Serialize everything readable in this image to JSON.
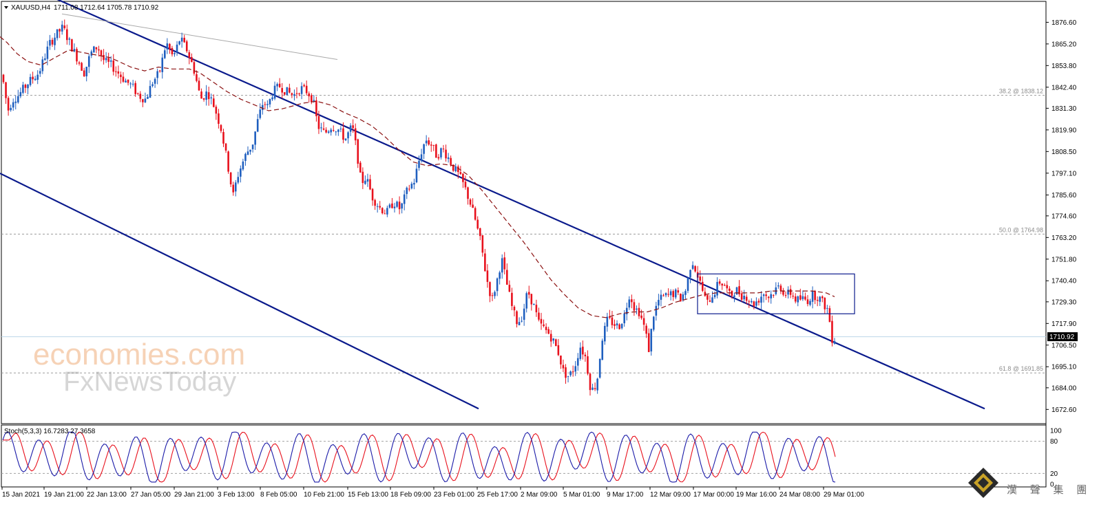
{
  "header": {
    "symbol": "XAUUSD,H4",
    "ohlc": "1711.08 1712.64 1705.78 1710.92"
  },
  "stoch": {
    "label": "Stoch(5,3,3) 16.7283 27.3658",
    "ticks": [
      "100",
      "80",
      "20",
      "0"
    ]
  },
  "price_axis": {
    "ticks": [
      "1876.60",
      "1865.20",
      "1853.80",
      "1842.40",
      "1831.30",
      "1819.90",
      "1808.50",
      "1797.10",
      "1785.60",
      "1774.60",
      "1763.20",
      "1751.80",
      "1740.40",
      "1729.30",
      "1717.90",
      "1706.50",
      "1695.10",
      "1684.00",
      "1672.60"
    ],
    "current": "1710.92"
  },
  "fib_levels": [
    {
      "label": "38.2 @ 1838.12",
      "price": 1838.12
    },
    {
      "label": "50.0 @ 1764.98",
      "price": 1764.98
    },
    {
      "label": "61.8 @ 1691.85",
      "price": 1691.85
    }
  ],
  "time_axis": {
    "labels": [
      "15 Jan 2021",
      "19 Jan 21:00",
      "22 Jan 13:00",
      "27 Jan 05:00",
      "29 Jan 21:00",
      "3 Feb 13:00",
      "8 Feb 05:00",
      "10 Feb 21:00",
      "15 Feb 13:00",
      "18 Feb 09:00",
      "23 Feb 01:00",
      "25 Feb 17:00",
      "2 Mar 09:00",
      "5 Mar 01:00",
      "9 Mar 17:00",
      "12 Mar 09:00",
      "17 Mar 00:00",
      "19 Mar 16:00",
      "24 Mar 08:00",
      "29 Mar 01:00"
    ]
  },
  "watermark": {
    "line1": "economies.com",
    "line2": "FxNewsToday"
  },
  "logo": {
    "text": "漢 聲 集 團"
  },
  "colors": {
    "bull": "#1f5fbf",
    "bear": "#e8101c",
    "trendline": "#0a1a8c",
    "ma": "#8b1010",
    "stoch_main": "#1a1aa8",
    "stoch_signal": "#e8101c"
  },
  "chart_data": {
    "type": "candlestick",
    "title": "XAUUSD,H4",
    "ylim": [
      1668,
      1884
    ],
    "moving_average": {
      "x": [
        0,
        10,
        25,
        40,
        60,
        80,
        100,
        130,
        160,
        190,
        210,
        230,
        250,
        275,
        290,
        310,
        330,
        350,
        370,
        390,
        410,
        420,
        440,
        460,
        480,
        500,
        520,
        540,
        560,
        580,
        600,
        620,
        640,
        660,
        680,
        700,
        720,
        740,
        760,
        780,
        800,
        820,
        840,
        860,
        880,
        900,
        920,
        940,
        960,
        980,
        1000,
        1020,
        1040,
        1060,
        1080,
        1100,
        1120,
        1140,
        1160,
        1180,
        1200,
        1212
      ],
      "y": [
        1869,
        1866,
        1860,
        1856,
        1854,
        1858,
        1862,
        1860,
        1858,
        1853,
        1851,
        1853,
        1852,
        1852,
        1850,
        1845,
        1840,
        1836,
        1833,
        1830,
        1831,
        1832,
        1834,
        1835,
        1833,
        1829,
        1826,
        1822,
        1816,
        1809,
        1803,
        1801,
        1802,
        1801,
        1796,
        1788,
        1779,
        1770,
        1761,
        1751,
        1741,
        1733,
        1726,
        1722,
        1721,
        1723,
        1724,
        1724,
        1726,
        1729,
        1731,
        1733,
        1734,
        1734,
        1734,
        1734,
        1735,
        1735,
        1735,
        1735,
        1734,
        1732
      ]
    },
    "price_path": {
      "x": [
        0,
        8,
        15,
        22,
        30,
        45,
        60,
        75,
        85,
        95,
        102,
        110,
        118,
        126,
        135,
        145,
        155,
        165,
        175,
        185,
        195,
        205,
        215,
        225,
        235,
        245,
        255,
        265,
        275,
        285,
        295,
        305,
        315,
        325,
        335,
        342,
        348,
        355,
        362,
        370,
        378,
        386,
        392,
        400,
        410,
        420,
        430,
        440,
        450,
        458,
        465,
        475,
        485,
        495,
        505,
        515,
        522,
        528,
        535,
        545,
        555,
        565,
        575,
        585,
        595,
        605,
        615,
        622,
        630,
        638,
        646,
        655,
        662,
        670,
        678,
        686,
        694,
        702,
        710,
        718,
        725,
        732,
        740,
        748,
        755,
        762,
        770,
        778,
        786,
        794,
        802,
        808,
        815,
        822,
        830,
        838,
        846,
        854,
        862,
        870,
        878,
        886,
        894,
        902,
        910,
        918,
        925,
        932,
        940,
        946,
        952,
        960,
        968,
        976,
        984,
        992,
        1000,
        1008,
        1016,
        1024,
        1030,
        1036,
        1042,
        1048,
        1056,
        1064,
        1072,
        1080,
        1088,
        1096,
        1104,
        1112,
        1120,
        1128,
        1136,
        1144,
        1152,
        1160,
        1168,
        1176,
        1184,
        1192,
        1200,
        1206,
        1212
      ],
      "y": [
        1852,
        1846,
        1830,
        1836,
        1838,
        1845,
        1850,
        1865,
        1870,
        1874,
        1868,
        1862,
        1856,
        1850,
        1860,
        1864,
        1856,
        1854,
        1850,
        1846,
        1843,
        1838,
        1836,
        1845,
        1850,
        1866,
        1858,
        1868,
        1862,
        1852,
        1836,
        1840,
        1832,
        1820,
        1800,
        1785,
        1795,
        1802,
        1808,
        1812,
        1825,
        1835,
        1832,
        1840,
        1843,
        1840,
        1838,
        1842,
        1840,
        1836,
        1822,
        1818,
        1822,
        1820,
        1815,
        1822,
        1808,
        1792,
        1795,
        1784,
        1779,
        1776,
        1782,
        1778,
        1788,
        1793,
        1808,
        1815,
        1812,
        1806,
        1810,
        1805,
        1800,
        1796,
        1790,
        1782,
        1772,
        1760,
        1742,
        1730,
        1740,
        1752,
        1738,
        1725,
        1718,
        1722,
        1735,
        1728,
        1718,
        1715,
        1712,
        1708,
        1702,
        1692,
        1690,
        1695,
        1706,
        1700,
        1682,
        1686,
        1710,
        1720,
        1718,
        1716,
        1722,
        1734,
        1726,
        1724,
        1715,
        1704,
        1722,
        1730,
        1732,
        1733,
        1734,
        1731,
        1736,
        1752,
        1744,
        1735,
        1728,
        1732,
        1735,
        1740,
        1738,
        1732,
        1736,
        1733,
        1732,
        1728,
        1730,
        1734,
        1732,
        1735,
        1738,
        1733,
        1734,
        1730,
        1731,
        1730,
        1733,
        1732,
        1728,
        1725,
        1710
      ]
    },
    "channel_upper": {
      "x1": 0,
      "y1": 1902,
      "x2": 1430,
      "y2": 1673
    },
    "channel_lower": {
      "x1": 0,
      "y1": 1797,
      "x2": 695,
      "y2": 1673
    },
    "secondary_line": {
      "x1": 90,
      "y1": 1881,
      "x2": 490,
      "y2": 1857
    },
    "consolidation_box": {
      "x1": 1013,
      "x2": 1241,
      "y_top": 1744.0,
      "y_bottom": 1723.0
    },
    "stochastic": {
      "main_period": 26,
      "main_phase": 0.3,
      "signal_lag": 3,
      "ylim": [
        0,
        100
      ],
      "levels": [
        80,
        20
      ]
    }
  }
}
